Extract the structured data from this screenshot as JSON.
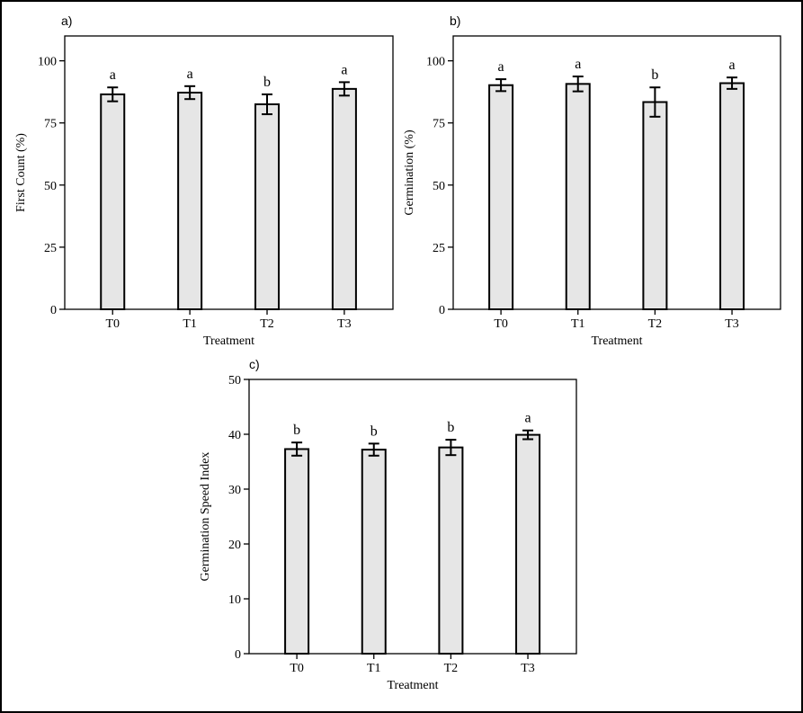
{
  "figure": {
    "frame_color": "#000000",
    "bar_fill": "#e6e6e6"
  },
  "chart_data": [
    {
      "panel": "a)",
      "type": "bar",
      "categories": [
        "T0",
        "T1",
        "T2",
        "T3"
      ],
      "values": [
        86.5,
        87.2,
        82.5,
        88.7
      ],
      "errors": [
        2.8,
        2.6,
        4.0,
        2.7
      ],
      "letters": [
        "a",
        "a",
        "b",
        "a"
      ],
      "xlabel": "Treatment",
      "ylabel": "First Count (%)",
      "ylim": [
        0,
        110
      ],
      "yticks": [
        0,
        25,
        50,
        75,
        100
      ]
    },
    {
      "panel": "b)",
      "type": "bar",
      "categories": [
        "T0",
        "T1",
        "T2",
        "T3"
      ],
      "values": [
        90.2,
        90.7,
        83.4,
        91.0
      ],
      "errors": [
        2.4,
        3.0,
        5.9,
        2.3
      ],
      "letters": [
        "a",
        "a",
        "b",
        "a"
      ],
      "xlabel": "Treatment",
      "ylabel": "Germination (%)",
      "ylim": [
        0,
        110
      ],
      "yticks": [
        0,
        25,
        50,
        75,
        100
      ]
    },
    {
      "panel": "c)",
      "type": "bar",
      "categories": [
        "T0",
        "T1",
        "T2",
        "T3"
      ],
      "values": [
        37.3,
        37.2,
        37.6,
        39.9
      ],
      "errors": [
        1.2,
        1.1,
        1.4,
        0.8
      ],
      "letters": [
        "b",
        "b",
        "b",
        "a"
      ],
      "xlabel": "Treatment",
      "ylabel": "Germination Speed Index",
      "ylim": [
        0,
        50
      ],
      "yticks": [
        0,
        10,
        20,
        30,
        40,
        50
      ]
    }
  ]
}
